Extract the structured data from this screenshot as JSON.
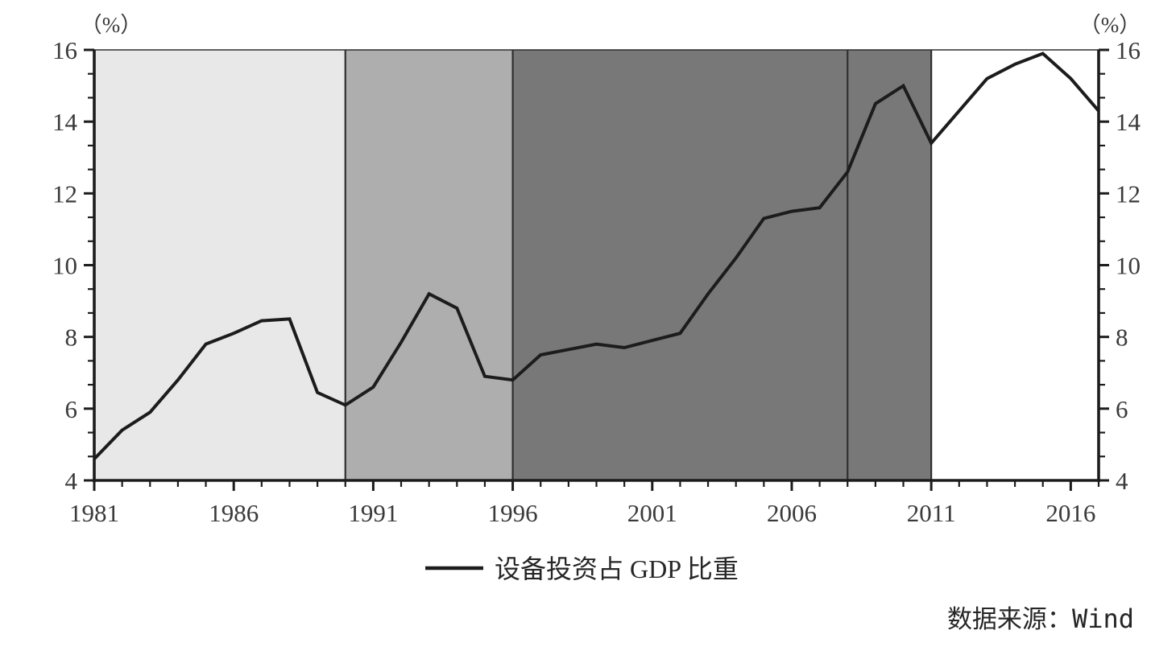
{
  "figure": {
    "unit_left": "（%）",
    "unit_right": "（%）",
    "legend_label": "设备投资占 GDP 比重",
    "source_prefix": "数据来源：",
    "source_value": "Wind"
  },
  "chart_data": {
    "type": "line",
    "title": "",
    "xlabel": "",
    "ylabel": "%",
    "x": [
      1981,
      1982,
      1983,
      1984,
      1985,
      1986,
      1987,
      1988,
      1989,
      1990,
      1991,
      1992,
      1993,
      1994,
      1995,
      1996,
      1997,
      1998,
      1999,
      2000,
      2001,
      2002,
      2003,
      2004,
      2005,
      2006,
      2007,
      2008,
      2009,
      2010,
      2011,
      2012,
      2013,
      2014,
      2015,
      2016,
      2017
    ],
    "series": [
      {
        "name": "设备投资占GDP比重",
        "color": "#1c1c1c",
        "values": [
          4.6,
          5.4,
          5.9,
          6.8,
          7.8,
          8.1,
          8.45,
          8.5,
          6.45,
          6.1,
          6.6,
          7.85,
          9.2,
          8.8,
          6.9,
          6.8,
          7.5,
          7.65,
          7.8,
          7.7,
          7.9,
          8.1,
          9.2,
          10.2,
          11.3,
          11.5,
          11.6,
          12.6,
          14.5,
          15.0,
          13.4,
          14.3,
          15.2,
          15.6,
          15.9,
          15.2,
          14.3
        ]
      }
    ],
    "xlim": [
      1981,
      2017
    ],
    "ylim": [
      4,
      16
    ],
    "yticks_major": [
      4,
      6,
      8,
      10,
      12,
      14,
      16
    ],
    "y_minor_ticks_per_interval": 2,
    "xticks_labeled": [
      1981,
      1986,
      1991,
      1996,
      2001,
      2006,
      2011,
      2016
    ],
    "xtick_minor_step": 1,
    "grid": false,
    "legend_position": "bottom-center",
    "unit_label": "（%）",
    "legend": [
      "设备投资占 GDP 比重"
    ],
    "source": "数据来源：Wind",
    "background_regions": [
      {
        "from": 1981,
        "to": 1990,
        "color": "#e8e8e8"
      },
      {
        "from": 1990,
        "to": 1996,
        "color": "#aeaeae"
      },
      {
        "from": 1996,
        "to": 2011,
        "color": "#787878"
      }
    ],
    "region_boundary_color": "#2f2f2f",
    "vertical_lines": [
      2008
    ],
    "frame_color": "#1c1c1c"
  }
}
